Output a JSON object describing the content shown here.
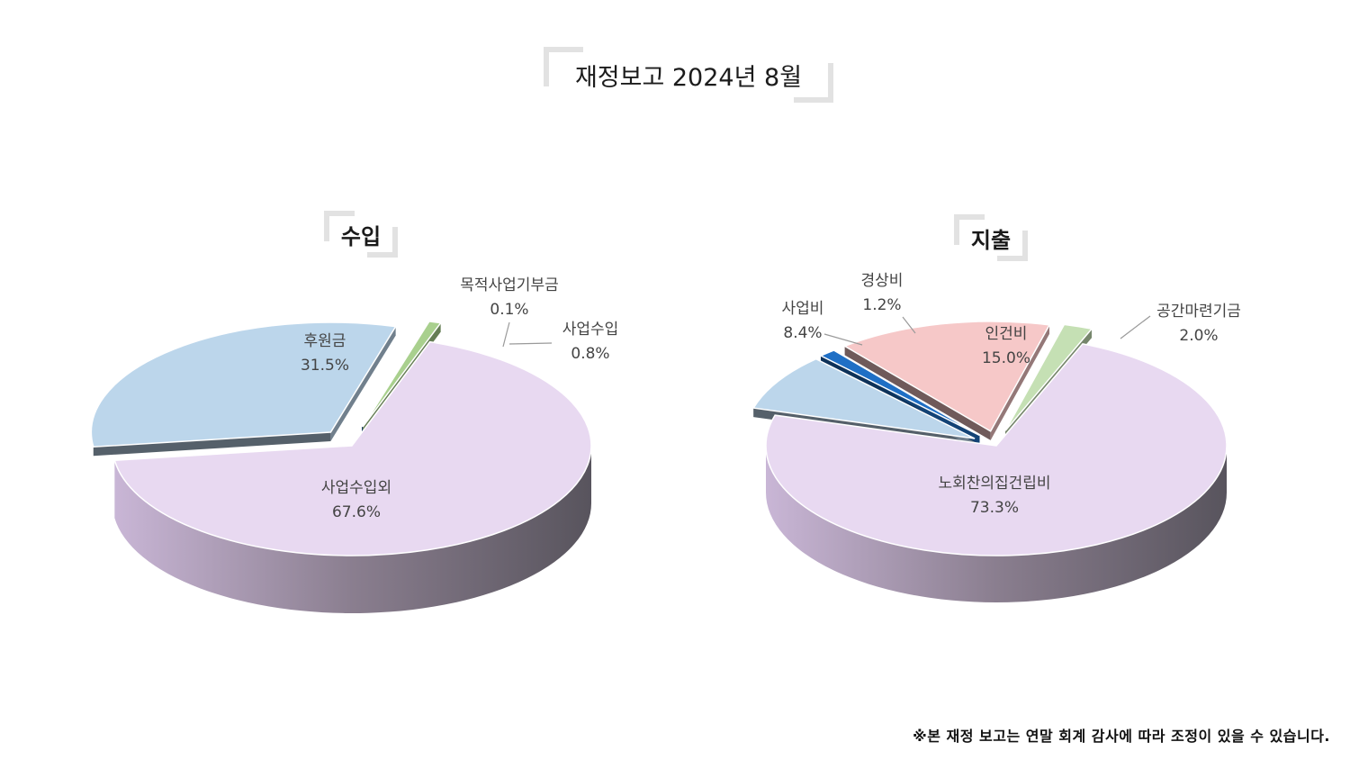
{
  "title": "재정보고 2024년 8월",
  "footnote": "※본 재정 보고는 연말 회계 감사에 따라 조정이 있을 수 있습니다.",
  "chart_data": [
    {
      "type": "pie",
      "title": "수입",
      "slices": [
        {
          "label": "사업수입외",
          "value": 67.6,
          "display": "67.6%",
          "color": "#e8d9f1"
        },
        {
          "label": "후원금",
          "value": 31.5,
          "display": "31.5%",
          "color": "#bcd6eb"
        },
        {
          "label": "목적사업기부금",
          "value": 0.1,
          "display": "0.1%",
          "color": "#2f6db3"
        },
        {
          "label": "사업수입",
          "value": 0.8,
          "display": "0.8%",
          "color": "#a9d08e"
        }
      ]
    },
    {
      "type": "pie",
      "title": "지출",
      "slices": [
        {
          "label": "노회찬의집건립비",
          "value": 73.3,
          "display": "73.3%",
          "color": "#e8d9f1"
        },
        {
          "label": "사업비",
          "value": 8.4,
          "display": "8.4%",
          "color": "#bcd6eb"
        },
        {
          "label": "경상비",
          "value": 1.2,
          "display": "1.2%",
          "color": "#1f6fc5"
        },
        {
          "label": "인건비",
          "value": 15.0,
          "display": "15.0%",
          "color": "#f6c8c8"
        },
        {
          "label": "공간마련기금",
          "value": 2.0,
          "display": "2.0%",
          "color": "#c5e0b4"
        }
      ]
    }
  ]
}
